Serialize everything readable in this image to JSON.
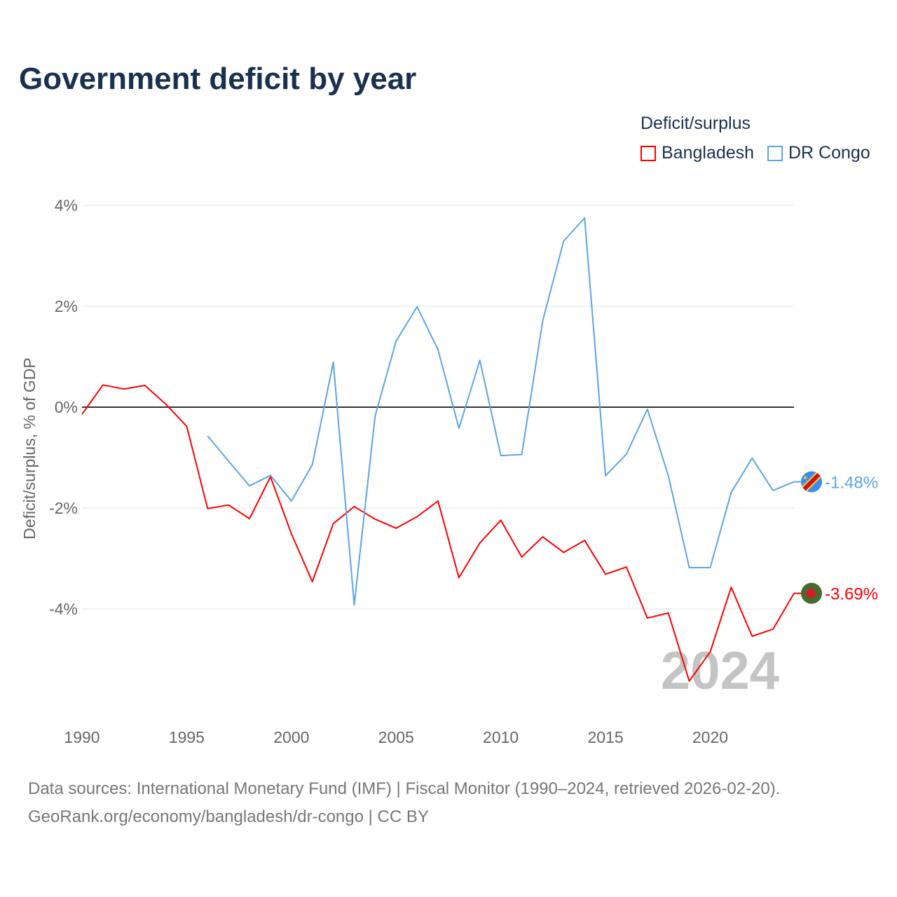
{
  "chart_data": {
    "type": "line",
    "title": "Government deficit by year",
    "xlabel": "",
    "ylabel": "Deficit/surplus, % of GDP",
    "ylim": [
      -6,
      4.5
    ],
    "xlim": [
      1990,
      2024
    ],
    "yticks": [
      4,
      2,
      0,
      -2,
      -4
    ],
    "ytick_labels": [
      "4%",
      "2%",
      "0%",
      "-2%",
      "-4%"
    ],
    "xticks": [
      1990,
      1995,
      2000,
      2005,
      2010,
      2015,
      2020
    ],
    "xtick_labels": [
      "1990",
      "1995",
      "2000",
      "2005",
      "2010",
      "2015",
      "2020"
    ],
    "legend_title": "Deficit/surplus",
    "legend_position": "top-right",
    "year_watermark": "2024",
    "series": [
      {
        "name": "Bangladesh",
        "color": "#ff0000",
        "end_label": "-3.69%",
        "x": [
          1990,
          1991,
          1992,
          1993,
          1994,
          1995,
          1996,
          1997,
          1998,
          1999,
          2000,
          2001,
          2002,
          2003,
          2004,
          2005,
          2006,
          2007,
          2008,
          2009,
          2010,
          2011,
          2012,
          2013,
          2014,
          2015,
          2016,
          2017,
          2018,
          2019,
          2020,
          2021,
          2022,
          2023,
          2024
        ],
        "values": [
          -0.14,
          0.44,
          0.36,
          0.43,
          0.06,
          -0.38,
          -2.01,
          -1.94,
          -2.21,
          -1.38,
          -2.51,
          -3.46,
          -2.31,
          -1.97,
          -2.22,
          -2.4,
          -2.17,
          -1.86,
          -3.38,
          -2.69,
          -2.24,
          -2.97,
          -2.57,
          -2.88,
          -2.64,
          -3.31,
          -3.17,
          -4.18,
          -4.08,
          -5.43,
          -4.85,
          -3.57,
          -4.54,
          -4.4,
          -3.69
        ]
      },
      {
        "name": "DR Congo",
        "color": "#5ba4ea",
        "end_label": "-1.48%",
        "x": [
          1996,
          1997,
          1998,
          1999,
          2000,
          2001,
          2002,
          2003,
          2004,
          2005,
          2006,
          2007,
          2008,
          2009,
          2010,
          2011,
          2012,
          2013,
          2014,
          2015,
          2016,
          2017,
          2018,
          2019,
          2020,
          2021,
          2022,
          2023,
          2024
        ],
        "values": [
          -0.57,
          -1.07,
          -1.56,
          -1.35,
          -1.86,
          -1.14,
          0.89,
          -3.92,
          -0.17,
          1.31,
          1.99,
          1.14,
          -0.42,
          0.93,
          -0.96,
          -0.94,
          1.71,
          3.29,
          3.75,
          -1.36,
          -0.93,
          -0.04,
          -1.36,
          -3.18,
          -3.18,
          -1.69,
          -1.01,
          -1.65,
          -1.48
        ]
      }
    ]
  },
  "source_line1": "Data sources: International Monetary Fund (IMF) | Fiscal Monitor (1990–2024, retrieved 2026-02-20).",
  "source_line2": "GeoRank.org/economy/bangladesh/dr-congo | CC BY"
}
